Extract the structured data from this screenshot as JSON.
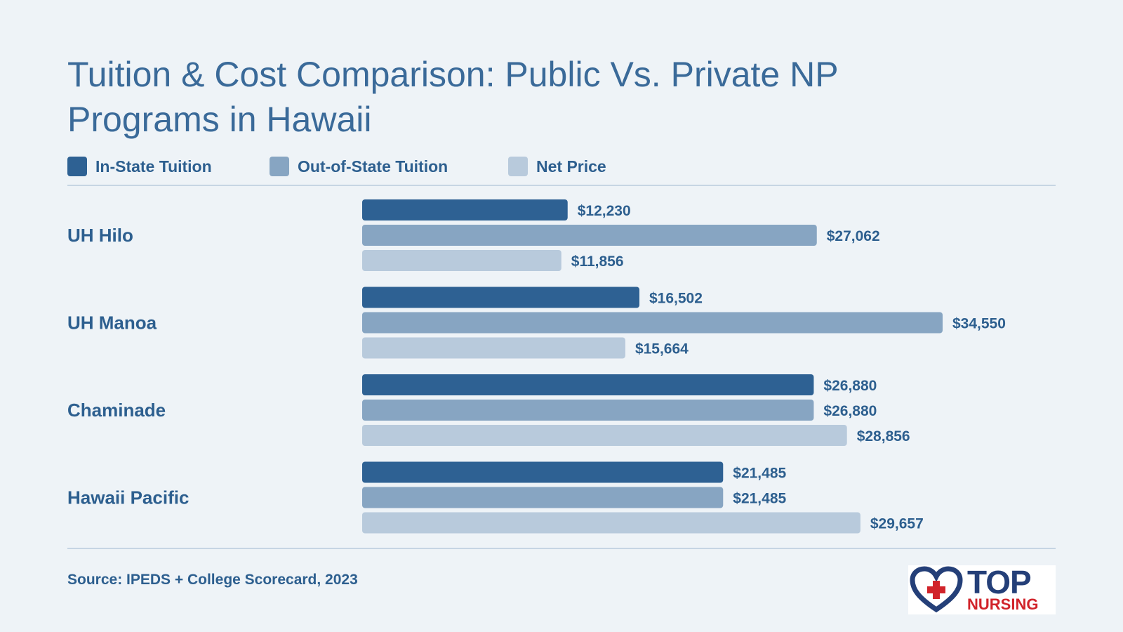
{
  "title": "Tuition & Cost Comparison: Public Vs. Private NP Programs in Hawaii",
  "legend": [
    {
      "label": "In-State Tuition",
      "color": "#2e6193"
    },
    {
      "label": "Out-of-State Tuition",
      "color": "#87a5c2"
    },
    {
      "label": "Net Price",
      "color": "#b8cadc"
    }
  ],
  "source": "Source: IPEDS + College Scorecard, 2023",
  "logo": {
    "word1": "TOP",
    "word2": "NURSING",
    "icon": "heart-cross-icon"
  },
  "chart_data": {
    "type": "bar",
    "orientation": "horizontal",
    "categories": [
      "UH Hilo",
      "UH Manoa",
      "Chaminade",
      "Hawaii Pacific"
    ],
    "series": [
      {
        "name": "In-State Tuition",
        "values": [
          12230,
          16502,
          26880,
          21485
        ],
        "labels": [
          "$12,230",
          "$16,502",
          "$26,880",
          "$21,485"
        ]
      },
      {
        "name": "Out-of-State Tuition",
        "values": [
          27062,
          34550,
          26880,
          21485
        ],
        "labels": [
          "$27,062",
          "$34,550",
          "$26,880",
          "$21,485"
        ]
      },
      {
        "name": "Net Price",
        "values": [
          11856,
          15664,
          28856,
          29657
        ],
        "labels": [
          "$11,856",
          "$15,664",
          "$28,856",
          "$29,657"
        ]
      }
    ],
    "xlim": [
      0,
      34550
    ],
    "grid": false,
    "legend_position": "top-left"
  }
}
